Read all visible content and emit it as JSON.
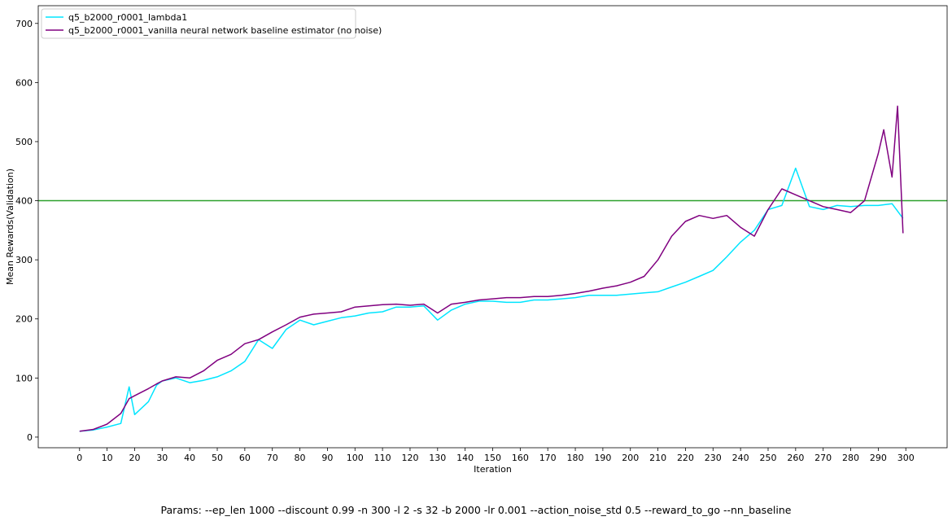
{
  "caption": "Params: --ep_len 1000 --discount 0.99 -n 300 -l 2 -s 32 -b 2000 -lr 0.001 --action_noise_std 0.5 --reward_to_go --nn_baseline",
  "chart_data": {
    "type": "line",
    "xlabel": "Iteration",
    "ylabel": "Mean Rewards(Validation)",
    "xlim": [
      -15,
      315
    ],
    "ylim": [
      -18,
      730
    ],
    "xticks": [
      0,
      10,
      20,
      30,
      40,
      50,
      60,
      70,
      80,
      90,
      100,
      110,
      120,
      130,
      140,
      150,
      160,
      170,
      180,
      190,
      200,
      210,
      220,
      230,
      240,
      250,
      260,
      270,
      280,
      290,
      300
    ],
    "yticks": [
      0,
      100,
      200,
      300,
      400,
      500,
      600,
      700
    ],
    "legend_position": "top-left",
    "grid": false,
    "hline": {
      "y": 400,
      "color": "#2ca02c"
    },
    "series": [
      {
        "name": "q5_b2000_r0001_lambda1",
        "color": "#00e5ff",
        "points": [
          [
            0,
            10
          ],
          [
            5,
            12
          ],
          [
            10,
            17
          ],
          [
            15,
            23
          ],
          [
            18,
            85
          ],
          [
            20,
            38
          ],
          [
            25,
            60
          ],
          [
            28,
            88
          ],
          [
            30,
            95
          ],
          [
            35,
            100
          ],
          [
            40,
            92
          ],
          [
            45,
            96
          ],
          [
            50,
            102
          ],
          [
            55,
            112
          ],
          [
            60,
            128
          ],
          [
            65,
            165
          ],
          [
            70,
            150
          ],
          [
            75,
            182
          ],
          [
            80,
            198
          ],
          [
            85,
            190
          ],
          [
            90,
            196
          ],
          [
            95,
            202
          ],
          [
            100,
            205
          ],
          [
            105,
            210
          ],
          [
            110,
            212
          ],
          [
            115,
            220
          ],
          [
            120,
            220
          ],
          [
            125,
            222
          ],
          [
            130,
            198
          ],
          [
            135,
            215
          ],
          [
            140,
            225
          ],
          [
            145,
            230
          ],
          [
            150,
            230
          ],
          [
            155,
            228
          ],
          [
            160,
            228
          ],
          [
            165,
            232
          ],
          [
            170,
            232
          ],
          [
            175,
            234
          ],
          [
            180,
            236
          ],
          [
            185,
            240
          ],
          [
            190,
            240
          ],
          [
            195,
            240
          ],
          [
            200,
            242
          ],
          [
            205,
            244
          ],
          [
            210,
            246
          ],
          [
            215,
            254
          ],
          [
            220,
            262
          ],
          [
            225,
            272
          ],
          [
            230,
            282
          ],
          [
            235,
            305
          ],
          [
            240,
            330
          ],
          [
            245,
            350
          ],
          [
            250,
            385
          ],
          [
            255,
            392
          ],
          [
            260,
            455
          ],
          [
            265,
            390
          ],
          [
            270,
            385
          ],
          [
            275,
            392
          ],
          [
            280,
            390
          ],
          [
            285,
            392
          ],
          [
            290,
            392
          ],
          [
            295,
            395
          ],
          [
            299,
            370
          ]
        ]
      },
      {
        "name": "q5_b2000_r0001_vanilla neural network baseline estimator (no noise)",
        "color": "#800080",
        "points": [
          [
            0,
            10
          ],
          [
            5,
            13
          ],
          [
            10,
            22
          ],
          [
            15,
            40
          ],
          [
            18,
            65
          ],
          [
            20,
            70
          ],
          [
            25,
            82
          ],
          [
            28,
            90
          ],
          [
            30,
            95
          ],
          [
            35,
            102
          ],
          [
            40,
            100
          ],
          [
            45,
            112
          ],
          [
            50,
            130
          ],
          [
            55,
            140
          ],
          [
            60,
            158
          ],
          [
            65,
            165
          ],
          [
            70,
            178
          ],
          [
            75,
            190
          ],
          [
            80,
            203
          ],
          [
            85,
            208
          ],
          [
            90,
            210
          ],
          [
            95,
            212
          ],
          [
            100,
            220
          ],
          [
            105,
            222
          ],
          [
            110,
            224
          ],
          [
            115,
            225
          ],
          [
            120,
            223
          ],
          [
            125,
            225
          ],
          [
            130,
            210
          ],
          [
            135,
            225
          ],
          [
            140,
            228
          ],
          [
            145,
            232
          ],
          [
            150,
            234
          ],
          [
            155,
            236
          ],
          [
            160,
            236
          ],
          [
            165,
            238
          ],
          [
            170,
            238
          ],
          [
            175,
            240
          ],
          [
            180,
            243
          ],
          [
            185,
            247
          ],
          [
            190,
            252
          ],
          [
            195,
            256
          ],
          [
            200,
            262
          ],
          [
            205,
            272
          ],
          [
            210,
            300
          ],
          [
            215,
            340
          ],
          [
            220,
            365
          ],
          [
            225,
            375
          ],
          [
            230,
            370
          ],
          [
            235,
            375
          ],
          [
            240,
            355
          ],
          [
            245,
            340
          ],
          [
            250,
            385
          ],
          [
            255,
            420
          ],
          [
            260,
            410
          ],
          [
            265,
            400
          ],
          [
            270,
            390
          ],
          [
            275,
            385
          ],
          [
            280,
            380
          ],
          [
            285,
            400
          ],
          [
            290,
            480
          ],
          [
            292,
            520
          ],
          [
            295,
            440
          ],
          [
            297,
            560
          ],
          [
            299,
            345
          ]
        ]
      }
    ]
  }
}
